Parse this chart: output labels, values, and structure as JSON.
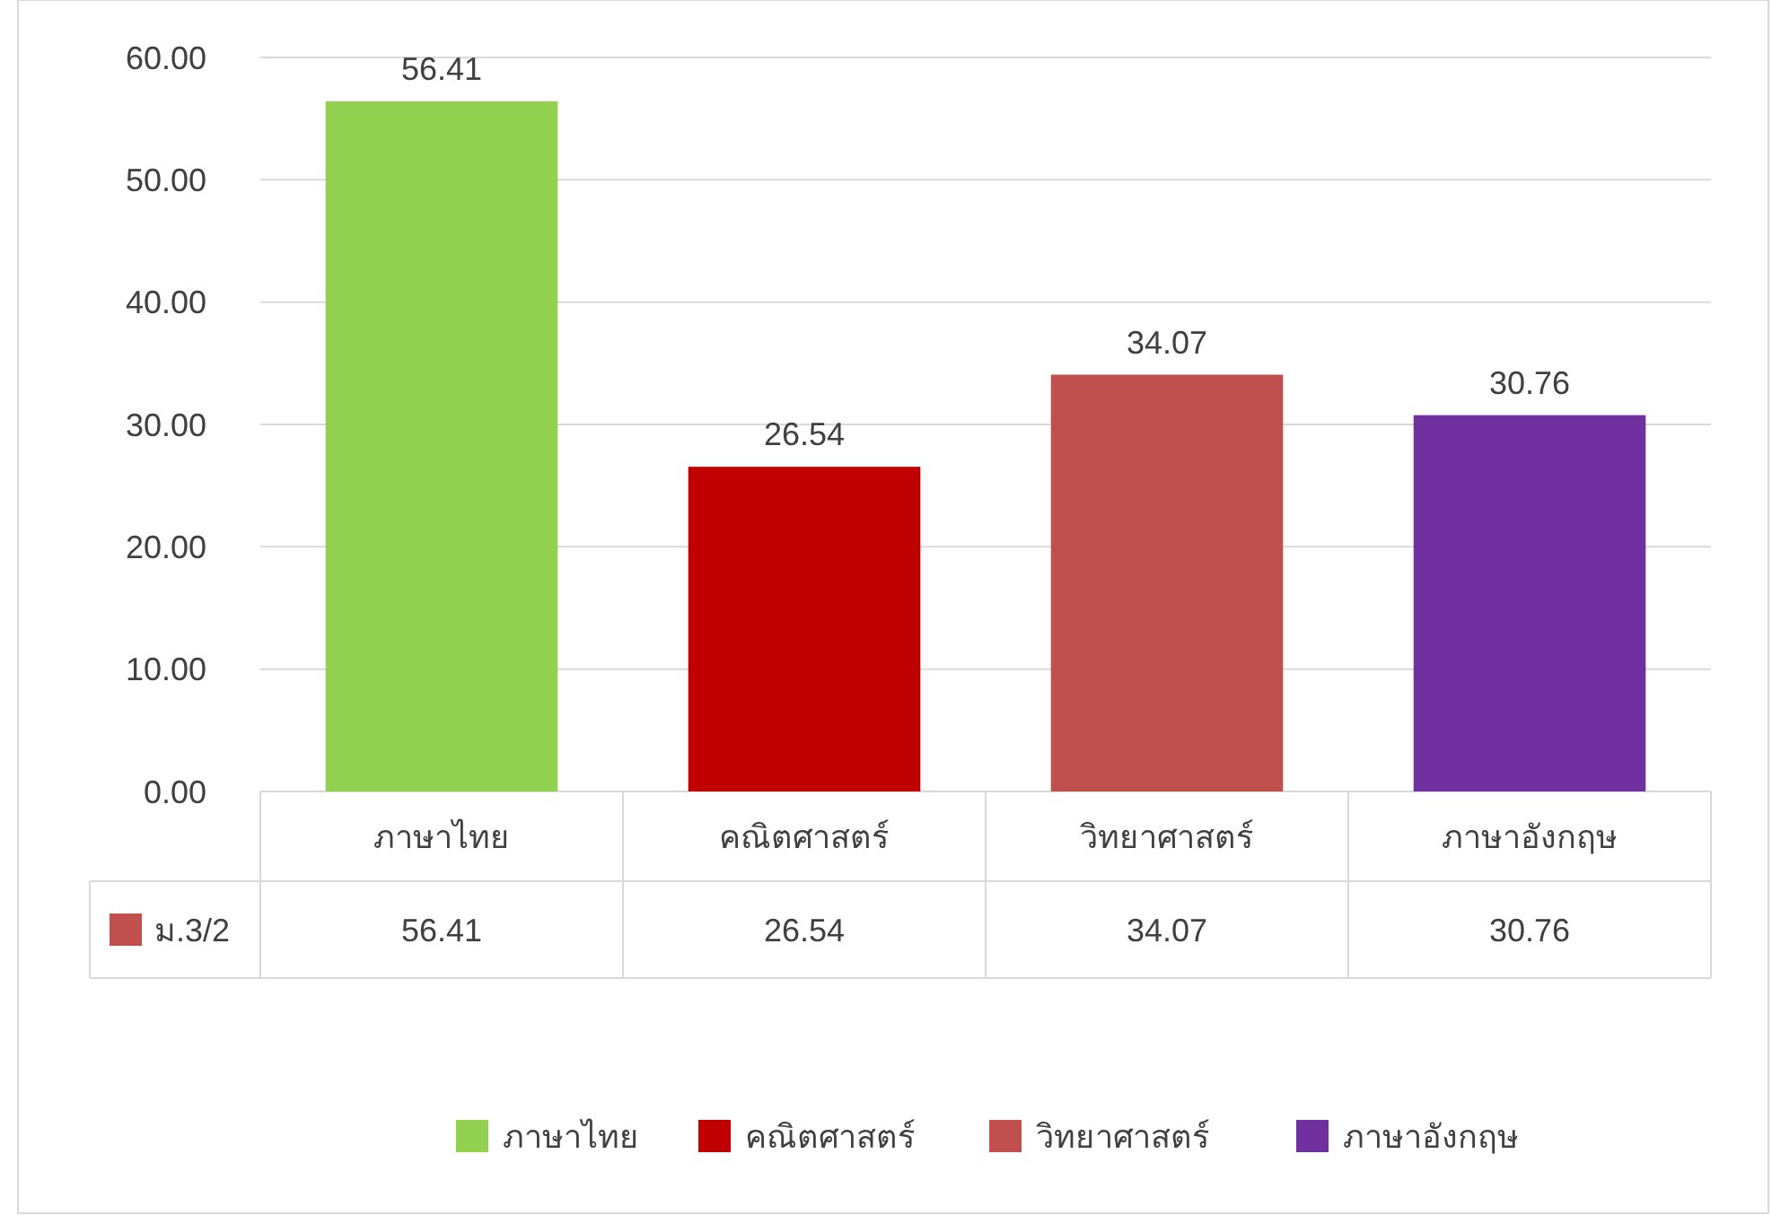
{
  "chart_data": {
    "type": "bar",
    "categories": [
      "ภาษาไทย",
      "คณิตศาสตร์",
      "วิทยาศาสตร์",
      "ภาษาอังกฤษ"
    ],
    "series": [
      {
        "name": "ม.3/2",
        "color": "#c0504d",
        "colors": [
          "#92d050",
          "#c00000",
          "#c0504d",
          "#7030a0"
        ],
        "values": [
          56.41,
          26.54,
          34.07,
          30.76
        ],
        "value_labels": [
          "56.41",
          "26.54",
          "34.07",
          "30.76"
        ]
      }
    ],
    "ylim": [
      0,
      60
    ],
    "yticks": [
      {
        "value": 0,
        "label": "0.00"
      },
      {
        "value": 10,
        "label": "10.00"
      },
      {
        "value": 20,
        "label": "20.00"
      },
      {
        "value": 30,
        "label": "30.00"
      },
      {
        "value": 40,
        "label": "40.00"
      },
      {
        "value": 50,
        "label": "50.00"
      },
      {
        "value": 60,
        "label": "60.00"
      }
    ],
    "annotations": [
      "56.41",
      "26.54",
      "34.07",
      "30.76"
    ],
    "grid": "y",
    "legend": "bottom"
  }
}
